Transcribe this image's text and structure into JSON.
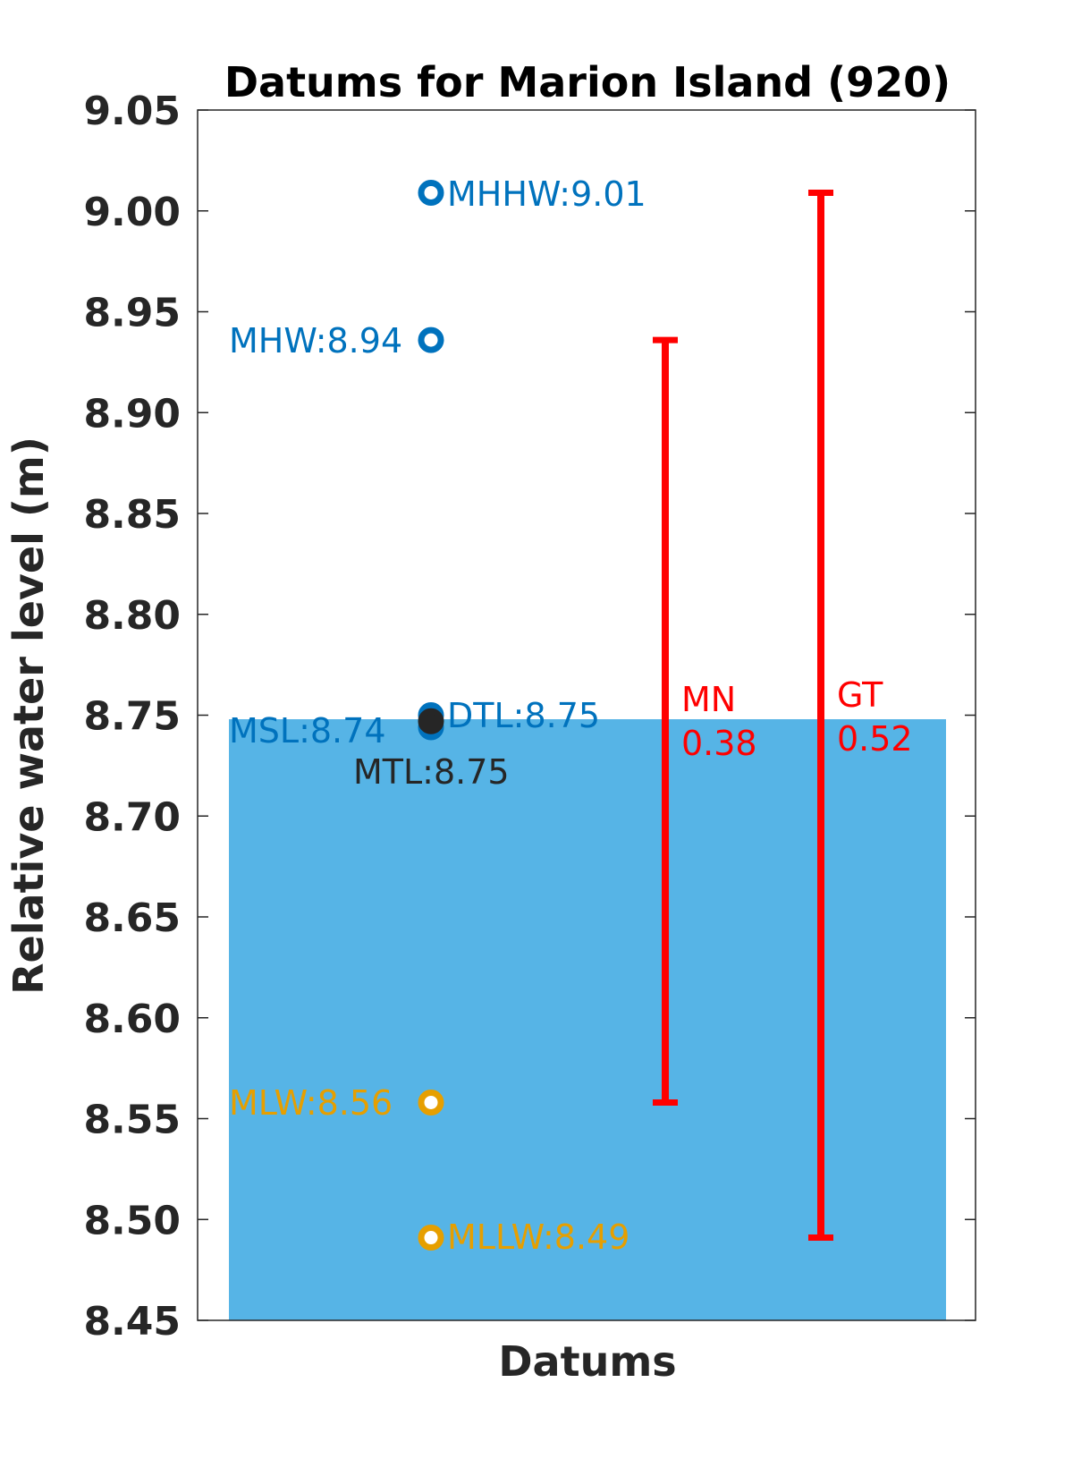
{
  "chart_data": {
    "type": "scatter",
    "title": "Datums for Marion Island (920)",
    "xlabel": "Datums",
    "ylabel": "Relative water level (m)",
    "ylim": [
      8.45,
      9.05
    ],
    "yticks": [
      "8.45",
      "8.50",
      "8.55",
      "8.60",
      "8.65",
      "8.70",
      "8.75",
      "8.80",
      "8.85",
      "8.90",
      "8.95",
      "9.00",
      "9.05"
    ],
    "grid": false,
    "background_fill": {
      "from": 8.45,
      "to": 8.748,
      "color": "#56B4E6"
    },
    "datums": [
      {
        "name": "MHHW",
        "value": 9.009,
        "label": "MHHW:9.01",
        "color": "#0072BD",
        "label_side": "right"
      },
      {
        "name": "MHW",
        "value": 8.936,
        "label": "MHW:8.94",
        "color": "#0072BD",
        "label_side": "left"
      },
      {
        "name": "DTL",
        "value": 8.75,
        "label": "DTL:8.75",
        "color": "#0072BD",
        "label_side": "right"
      },
      {
        "name": "MSL",
        "value": 8.744,
        "label": "MSL:8.74",
        "color": "#0072BD",
        "label_side": "left"
      },
      {
        "name": "MTL",
        "value": 8.747,
        "label": "MTL:8.75",
        "color": "#262626",
        "label_side": "below"
      },
      {
        "name": "MLW",
        "value": 8.558,
        "label": "MLW:8.56",
        "color": "#E69F00",
        "label_side": "left"
      },
      {
        "name": "MLLW",
        "value": 8.491,
        "label": "MLLW:8.49",
        "color": "#E69F00",
        "label_side": "right"
      }
    ],
    "ranges": [
      {
        "name": "MN",
        "low": 8.558,
        "high": 8.936,
        "label_name": "MN",
        "label_value": "0.38",
        "color": "#FF0000"
      },
      {
        "name": "GT",
        "low": 8.491,
        "high": 9.009,
        "label_name": "GT",
        "label_value": "0.52",
        "color": "#FF0000"
      }
    ]
  }
}
